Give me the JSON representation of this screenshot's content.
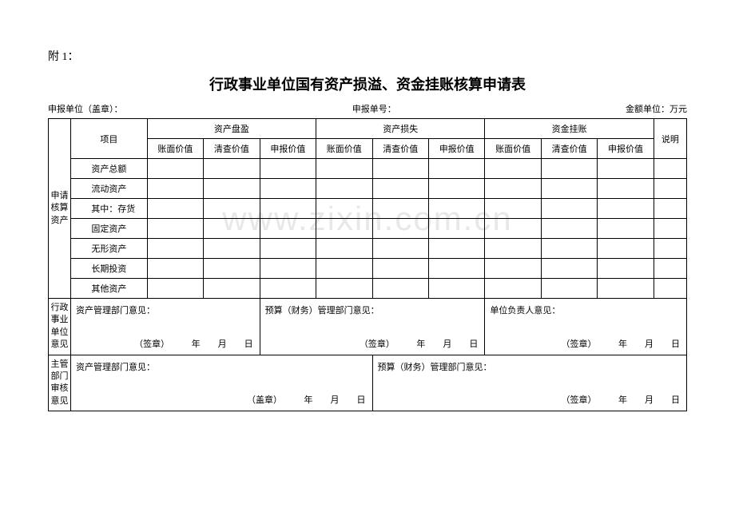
{
  "appendix": "附 1：",
  "title": "行政事业单位国有资产损溢、资金挂账核算申请表",
  "header": {
    "left": "申报单位（盖章）：",
    "middle": "申报单号：",
    "right": "金额单位：万元"
  },
  "table": {
    "main_row_label": "申请核算资产",
    "col_item": "项目",
    "group1": "资产盘盈",
    "group2": "资产损失",
    "group3": "资金挂账",
    "col_note": "说明",
    "sub1": "账面价值",
    "sub2": "清查价值",
    "sub3": "申报价值",
    "rows": {
      "r1": "资产总额",
      "r2": "流动资产",
      "r3": "其中：存货",
      "r4": "固定资产",
      "r5": "无形资产",
      "r6": "长期投资",
      "r7": "其他资产"
    }
  },
  "opinions": {
    "section1_label": "行政事业单位意见",
    "section2_label": "主管部门审核意见",
    "o1": "资产管理部门意见：",
    "o2": "预算（财务）管理部门意见：",
    "o3": "单位负责人意见：",
    "o4": "资产管理部门意见：",
    "o5": "预算（财务）管理部门意见：",
    "sign1": "（签章）　　　年　　月　　日",
    "sign2": "（签章）　　　年　　月　　日",
    "sign3": "（签章）　　　年　　月　　日",
    "sign4": "（盖章）　　　年　　月　　日",
    "sign5": "（签章）　　　年　　月　　日"
  },
  "watermark": "www.zixin.com.cn"
}
